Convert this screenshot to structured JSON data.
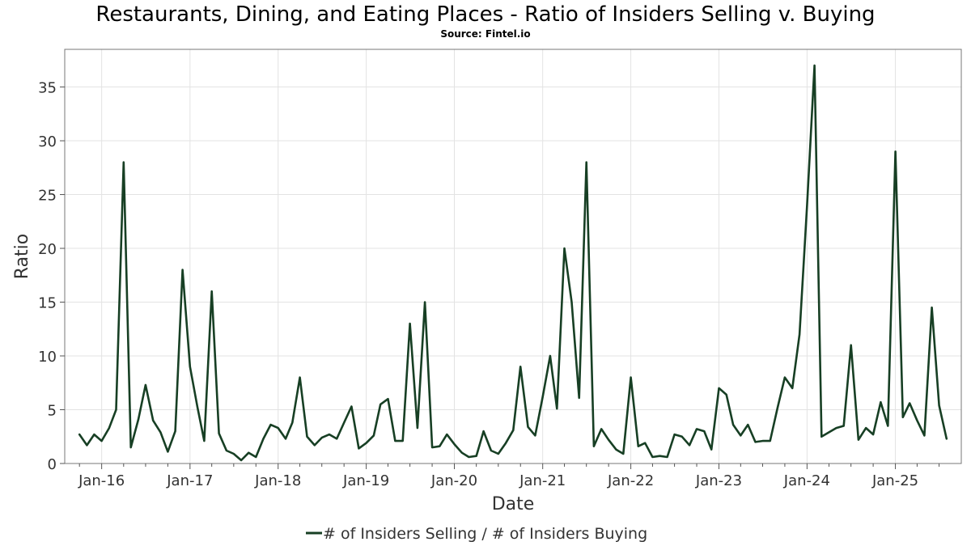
{
  "chart_data": {
    "type": "line",
    "title": "Restaurants, Dining, and Eating Places - Ratio of Insiders Selling v. Buying",
    "subtitle": "Source: Fintel.io",
    "xlabel": "Date",
    "ylabel": "Ratio",
    "x_ticks": [
      "Jan-16",
      "Jan-17",
      "Jan-18",
      "Jan-19",
      "Jan-20",
      "Jan-21",
      "Jan-22",
      "Jan-23",
      "Jan-24",
      "Jan-25"
    ],
    "y_ticks": [
      0,
      5,
      10,
      15,
      20,
      25,
      30,
      35
    ],
    "xlim": [
      "2015-08-01",
      "2025-10-01"
    ],
    "ylim": [
      0,
      38.5
    ],
    "grid": true,
    "legend_position": "bottom-center",
    "series": [
      {
        "name": "# of Insiders Selling / # of Insiders Buying",
        "color": "#173f24",
        "points": [
          [
            "2015-10",
            2.7
          ],
          [
            "2015-11",
            1.7
          ],
          [
            "2015-12",
            2.7
          ],
          [
            "2016-01",
            2.1
          ],
          [
            "2016-02",
            3.3
          ],
          [
            "2016-03",
            5.0
          ],
          [
            "2016-04",
            28.0
          ],
          [
            "2016-05",
            1.5
          ],
          [
            "2016-06",
            4.1
          ],
          [
            "2016-07",
            7.3
          ],
          [
            "2016-08",
            4.0
          ],
          [
            "2016-09",
            2.9
          ],
          [
            "2016-10",
            1.1
          ],
          [
            "2016-11",
            3.0
          ],
          [
            "2016-12",
            18.0
          ],
          [
            "2017-01",
            9.0
          ],
          [
            "2017-02",
            5.2
          ],
          [
            "2017-03",
            2.1
          ],
          [
            "2017-04",
            16.0
          ],
          [
            "2017-05",
            2.8
          ],
          [
            "2017-06",
            1.2
          ],
          [
            "2017-07",
            0.9
          ],
          [
            "2017-08",
            0.3
          ],
          [
            "2017-09",
            1.0
          ],
          [
            "2017-10",
            0.6
          ],
          [
            "2017-11",
            2.3
          ],
          [
            "2017-12",
            3.6
          ],
          [
            "2018-01",
            3.3
          ],
          [
            "2018-02",
            2.3
          ],
          [
            "2018-03",
            3.8
          ],
          [
            "2018-04",
            8.0
          ],
          [
            "2018-05",
            2.5
          ],
          [
            "2018-06",
            1.7
          ],
          [
            "2018-07",
            2.4
          ],
          [
            "2018-08",
            2.7
          ],
          [
            "2018-09",
            2.3
          ],
          [
            "2018-10",
            3.8
          ],
          [
            "2018-11",
            5.3
          ],
          [
            "2018-12",
            1.4
          ],
          [
            "2019-01",
            1.9
          ],
          [
            "2019-02",
            2.6
          ],
          [
            "2019-03",
            5.5
          ],
          [
            "2019-04",
            6.0
          ],
          [
            "2019-05",
            2.1
          ],
          [
            "2019-06",
            2.1
          ],
          [
            "2019-07",
            13.0
          ],
          [
            "2019-08",
            3.3
          ],
          [
            "2019-09",
            15.0
          ],
          [
            "2019-10",
            1.5
          ],
          [
            "2019-11",
            1.6
          ],
          [
            "2019-12",
            2.7
          ],
          [
            "2020-01",
            1.8
          ],
          [
            "2020-02",
            1.0
          ],
          [
            "2020-03",
            0.6
          ],
          [
            "2020-04",
            0.7
          ],
          [
            "2020-05",
            3.0
          ],
          [
            "2020-06",
            1.2
          ],
          [
            "2020-07",
            0.9
          ],
          [
            "2020-08",
            1.9
          ],
          [
            "2020-09",
            3.1
          ],
          [
            "2020-10",
            9.0
          ],
          [
            "2020-11",
            3.4
          ],
          [
            "2020-12",
            2.6
          ],
          [
            "2021-01",
            6.2
          ],
          [
            "2021-02",
            10.0
          ],
          [
            "2021-03",
            5.1
          ],
          [
            "2021-04",
            20.0
          ],
          [
            "2021-05",
            15.0
          ],
          [
            "2021-06",
            6.1
          ],
          [
            "2021-07",
            28.0
          ],
          [
            "2021-08",
            1.6
          ],
          [
            "2021-09",
            3.2
          ],
          [
            "2021-10",
            2.2
          ],
          [
            "2021-11",
            1.3
          ],
          [
            "2021-12",
            0.9
          ],
          [
            "2022-01",
            8.0
          ],
          [
            "2022-02",
            1.6
          ],
          [
            "2022-03",
            1.9
          ],
          [
            "2022-04",
            0.6
          ],
          [
            "2022-05",
            0.7
          ],
          [
            "2022-06",
            0.6
          ],
          [
            "2022-07",
            2.7
          ],
          [
            "2022-08",
            2.5
          ],
          [
            "2022-09",
            1.7
          ],
          [
            "2022-10",
            3.2
          ],
          [
            "2022-11",
            3.0
          ],
          [
            "2022-12",
            1.3
          ],
          [
            "2023-01",
            7.0
          ],
          [
            "2023-02",
            6.4
          ],
          [
            "2023-03",
            3.6
          ],
          [
            "2023-04",
            2.6
          ],
          [
            "2023-05",
            3.6
          ],
          [
            "2023-06",
            2.0
          ],
          [
            "2023-07",
            2.1
          ],
          [
            "2023-08",
            2.1
          ],
          [
            "2023-09",
            5.2
          ],
          [
            "2023-10",
            8.0
          ],
          [
            "2023-11",
            7.0
          ],
          [
            "2023-12",
            12.0
          ],
          [
            "2024-01",
            24.0
          ],
          [
            "2024-02",
            37.0
          ],
          [
            "2024-03",
            2.5
          ],
          [
            "2024-04",
            2.9
          ],
          [
            "2024-05",
            3.3
          ],
          [
            "2024-06",
            3.5
          ],
          [
            "2024-07",
            11.0
          ],
          [
            "2024-08",
            2.2
          ],
          [
            "2024-09",
            3.3
          ],
          [
            "2024-10",
            2.7
          ],
          [
            "2024-11",
            5.7
          ],
          [
            "2024-12",
            3.5
          ],
          [
            "2025-01",
            29.0
          ],
          [
            "2025-02",
            4.3
          ],
          [
            "2025-03",
            5.6
          ],
          [
            "2025-04",
            4.0
          ],
          [
            "2025-05",
            2.6
          ],
          [
            "2025-06",
            14.5
          ],
          [
            "2025-07",
            5.4
          ],
          [
            "2025-08",
            2.3
          ]
        ]
      }
    ]
  }
}
